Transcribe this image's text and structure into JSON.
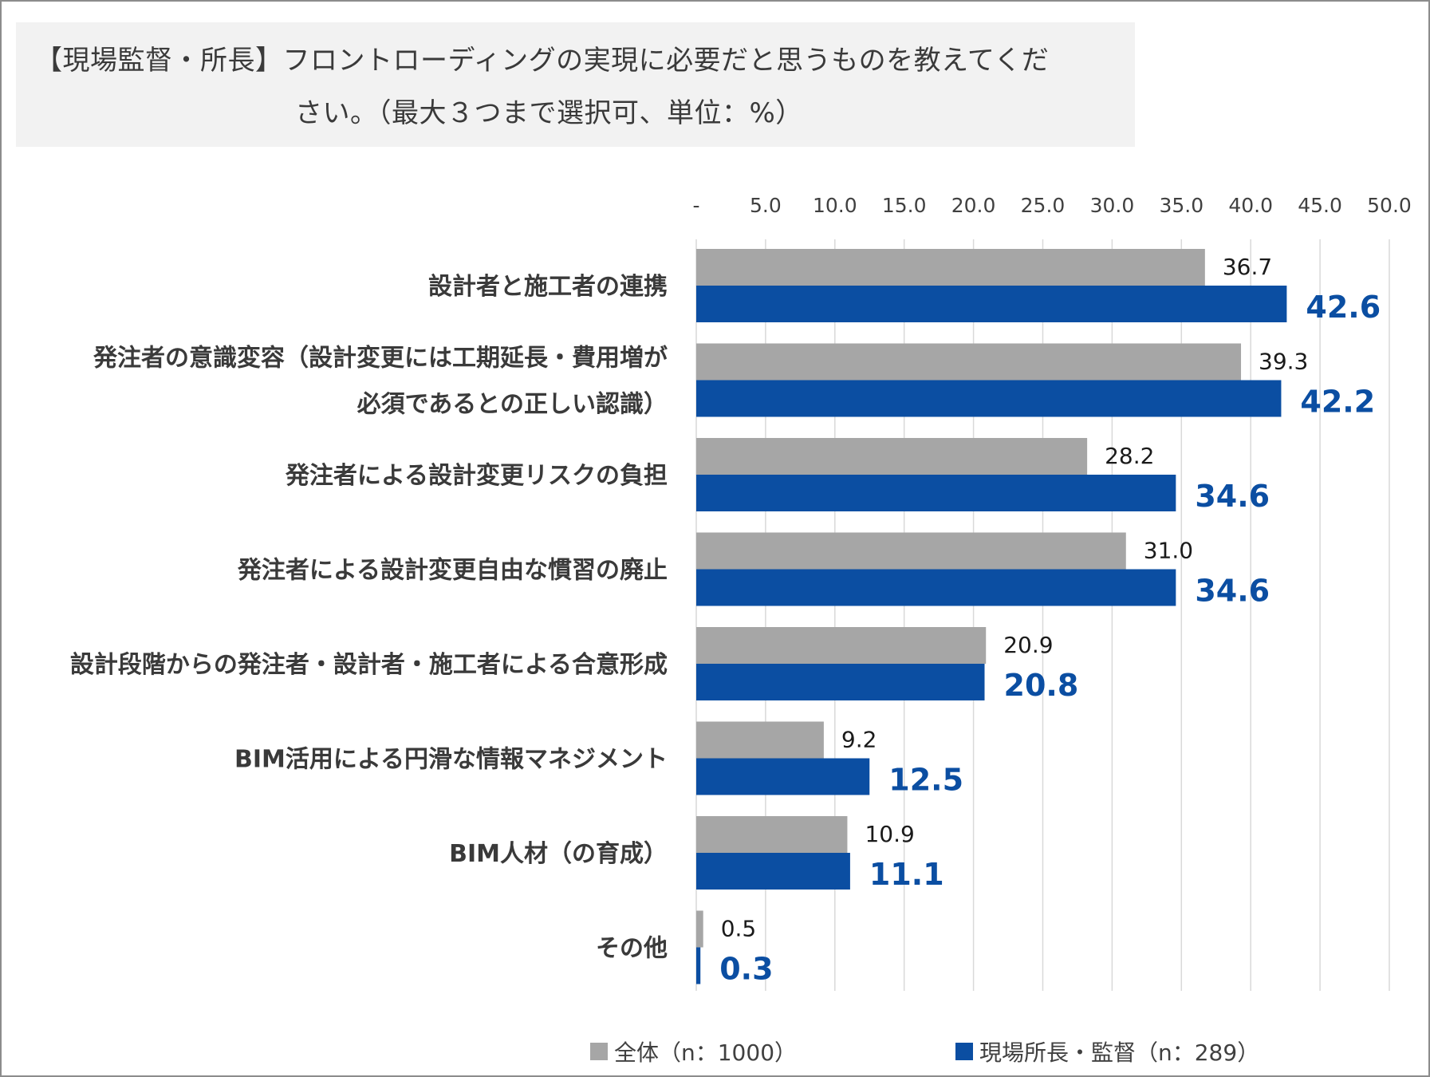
{
  "title": {
    "line1": "【現場監督・所長】フロントローディングの実現に必要だと思うものを教えてくだ",
    "line2": "さい。（最大３つまで選択可、単位：%）"
  },
  "legend": {
    "series1": "全体（n：1000）",
    "series2": "現場所長・監督（n：289）"
  },
  "colors": {
    "series1": "#a6a6a6",
    "series2": "#0b4ea2",
    "grid": "#d9d9d9",
    "axis_text": "#404040",
    "label_dark": "#1a1a1a"
  },
  "chart_data": {
    "type": "bar",
    "orientation": "horizontal",
    "title": "【現場監督・所長】フロントローディングの実現に必要だと思うものを教えてください。（最大３つまで選択可、単位：%）",
    "xlim": [
      0,
      50
    ],
    "ticks": [
      "-",
      "5.0",
      "10.0",
      "15.0",
      "20.0",
      "25.0",
      "30.0",
      "35.0",
      "40.0",
      "45.0",
      "50.0"
    ],
    "grid": true,
    "legend_position": "bottom",
    "categories": [
      [
        "設計者と施工者の連携"
      ],
      [
        "発注者の意識変容（設計変更には工期延長・費用増が",
        "必須であるとの正しい認識）"
      ],
      [
        "発注者による設計変更リスクの負担"
      ],
      [
        "発注者による設計変更自由な慣習の廃止"
      ],
      [
        "設計段階からの発注者・設計者・施工者による合意形成"
      ],
      [
        "BIM活用による円滑な情報マネジメント"
      ],
      [
        "BIM人材（の育成）"
      ],
      [
        "その他"
      ]
    ],
    "series": [
      {
        "name": "全体（n：1000）",
        "values": [
          36.7,
          39.3,
          28.2,
          31.0,
          20.9,
          9.2,
          10.9,
          0.5
        ],
        "labels": [
          "36.7",
          "39.3",
          "28.2",
          "31.0",
          "20.9",
          "9.2",
          "10.9",
          "0.5"
        ]
      },
      {
        "name": "現場所長・監督（n：289）",
        "values": [
          42.6,
          42.2,
          34.6,
          34.6,
          20.8,
          12.5,
          11.1,
          0.3
        ],
        "labels": [
          "42.6",
          "42.2",
          "34.6",
          "34.6",
          "20.8",
          "12.5",
          "11.1",
          "0.3"
        ]
      }
    ]
  }
}
